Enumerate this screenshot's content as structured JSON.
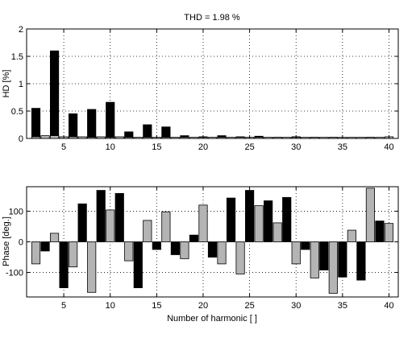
{
  "chart_data": [
    {
      "type": "bar",
      "title": "THD = 1.98 %",
      "xlabel": "",
      "ylabel": "HD [%]",
      "xlim": [
        1,
        41
      ],
      "ylim": [
        0,
        2
      ],
      "xticks": [
        5,
        10,
        15,
        20,
        25,
        30,
        35,
        40
      ],
      "yticks": [
        0,
        0.5,
        1,
        1.5,
        2
      ],
      "ytick_labels": [
        "0",
        "0.5",
        "1",
        "1.5",
        "2"
      ],
      "grid": true,
      "harmonics": [
        2,
        3,
        4,
        5,
        6,
        7,
        8,
        9,
        10,
        11,
        12,
        13,
        14,
        15,
        16,
        17,
        18,
        19,
        20,
        21,
        22,
        23,
        24,
        25,
        26,
        27,
        28,
        29,
        30,
        31,
        32,
        33,
        34,
        35,
        36,
        37,
        38,
        39,
        40
      ],
      "series": [
        {
          "color": "#000000",
          "values": [
            0.55,
            0.02,
            1.6,
            0.02,
            0.45,
            0.02,
            0.53,
            0.02,
            0.66,
            0.02,
            0.12,
            0.01,
            0.25,
            0.01,
            0.21,
            0.01,
            0.05,
            0.01,
            0.03,
            0.01,
            0.05,
            0.01,
            0.03,
            0.01,
            0.04,
            0.01,
            0.02,
            0.01,
            0.03,
            0.01,
            0.02,
            0.01,
            0.02,
            0.01,
            0.01,
            0.01,
            0.02,
            0.01,
            0.02
          ]
        },
        {
          "color": "#b4b4b4",
          "values": [
            0.03,
            0.05,
            0.05,
            0.03,
            0.03,
            0.03,
            0.02,
            0.03,
            0.02,
            0.03,
            0.02,
            0.02,
            0.02,
            0.02,
            0.02,
            0.02,
            0.02,
            0.02,
            0.02,
            0.02,
            0.02,
            0.02,
            0.02,
            0.02,
            0.02,
            0.02,
            0.02,
            0.02,
            0.02,
            0.02,
            0.02,
            0.02,
            0.02,
            0.02,
            0.02,
            0.02,
            0.02,
            0.02,
            0.03
          ]
        }
      ]
    },
    {
      "type": "bar",
      "title": "",
      "xlabel": "Number of harmonic [ ]",
      "ylabel": "Phase [deg.]",
      "xlim": [
        1,
        41
      ],
      "ylim": [
        -180,
        180
      ],
      "xticks": [
        5,
        10,
        15,
        20,
        25,
        30,
        35,
        40
      ],
      "yticks": [
        -100,
        0,
        100
      ],
      "ytick_labels": [
        "-100",
        "0",
        "100"
      ],
      "grid": true,
      "harmonics": [
        2,
        3,
        4,
        5,
        6,
        7,
        8,
        9,
        10,
        11,
        12,
        13,
        14,
        15,
        16,
        17,
        18,
        19,
        20,
        21,
        22,
        23,
        24,
        25,
        26,
        27,
        28,
        29,
        30,
        31,
        32,
        33,
        34,
        35,
        36,
        37,
        38,
        39,
        40
      ],
      "series": [
        {
          "color": "#000000",
          "values": [
            -30,
            -150,
            124,
            168,
            158,
            -150,
            -25,
            -42,
            22,
            -50,
            143,
            168,
            134,
            145,
            -25,
            -92,
            -115,
            -125,
            68
          ]
        },
        {
          "color": "#b4b4b4",
          "values": [
            -72,
            28,
            -82,
            -165,
            104,
            -62,
            70,
            98,
            -55,
            120,
            -72,
            -105,
            118,
            62,
            -72,
            -118,
            -168,
            38,
            175,
            60
          ]
        }
      ],
      "series_harmonics": [
        [
          3,
          5,
          7,
          9,
          11,
          13,
          15,
          17,
          19,
          21,
          23,
          25,
          27,
          29,
          31,
          33,
          35,
          37,
          39
        ],
        [
          2,
          4,
          6,
          8,
          10,
          12,
          14,
          16,
          18,
          20,
          22,
          24,
          26,
          28,
          30,
          32,
          34,
          36,
          38,
          40
        ]
      ]
    }
  ]
}
